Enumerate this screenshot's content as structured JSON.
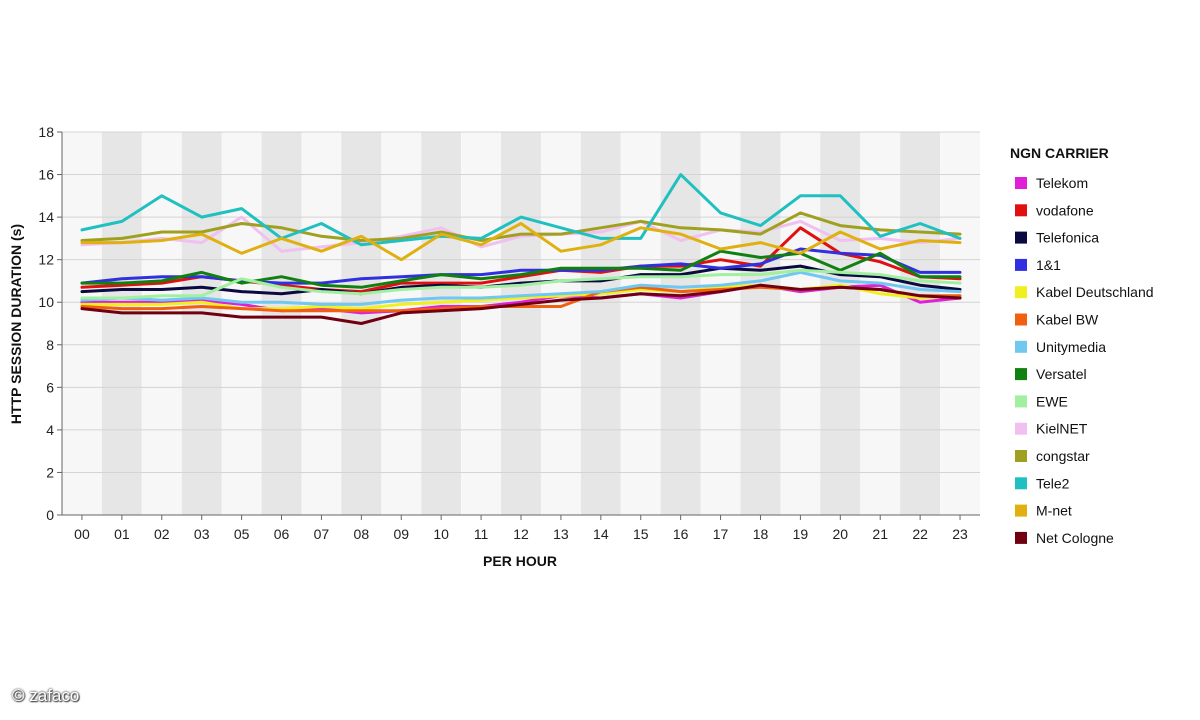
{
  "watermark": "© zafaco",
  "chart_data": {
    "type": "line",
    "title": "",
    "xlabel": "PER HOUR",
    "ylabel": "HTTP SESSION DURATION (s)",
    "ylim": [
      0,
      18
    ],
    "yticks": [
      0,
      2,
      4,
      6,
      8,
      10,
      12,
      14,
      16,
      18
    ],
    "grid": true,
    "legend_title": "NGN CARRIER",
    "legend_position": "right",
    "categories": [
      "00",
      "01",
      "02",
      "03",
      "05",
      "06",
      "07",
      "08",
      "09",
      "10",
      "11",
      "12",
      "13",
      "14",
      "15",
      "16",
      "17",
      "18",
      "19",
      "20",
      "21",
      "22",
      "23"
    ],
    "series": [
      {
        "name": "Telekom",
        "color": "#e020d8",
        "values": [
          10.0,
          10.0,
          10.0,
          10.1,
          9.9,
          9.6,
          9.7,
          9.5,
          9.6,
          9.8,
          9.8,
          10.0,
          10.3,
          10.2,
          10.4,
          10.2,
          10.5,
          10.8,
          10.5,
          10.7,
          10.8,
          10.0,
          10.2
        ]
      },
      {
        "name": "vodafone",
        "color": "#e01010",
        "values": [
          10.7,
          10.8,
          10.9,
          11.2,
          11.0,
          10.8,
          10.6,
          10.5,
          10.9,
          10.9,
          10.9,
          11.2,
          11.5,
          11.4,
          11.7,
          11.7,
          12.0,
          11.7,
          13.5,
          12.3,
          11.9,
          11.2,
          11.1
        ]
      },
      {
        "name": "Telefonica",
        "color": "#0a0a40",
        "values": [
          10.5,
          10.6,
          10.6,
          10.7,
          10.5,
          10.4,
          10.6,
          10.4,
          10.7,
          10.8,
          10.7,
          10.9,
          11.0,
          11.0,
          11.3,
          11.3,
          11.6,
          11.5,
          11.7,
          11.3,
          11.2,
          10.8,
          10.6
        ]
      },
      {
        "name": "1&1",
        "color": "#3030e0",
        "values": [
          10.9,
          11.1,
          11.2,
          11.2,
          11.0,
          10.9,
          10.9,
          11.1,
          11.2,
          11.3,
          11.3,
          11.5,
          11.5,
          11.5,
          11.7,
          11.8,
          11.6,
          11.8,
          12.5,
          12.3,
          12.2,
          11.4,
          11.4
        ]
      },
      {
        "name": "Kabel Deutschland",
        "color": "#f0f020",
        "values": [
          9.9,
          9.9,
          9.9,
          10.0,
          9.7,
          9.7,
          9.8,
          9.7,
          9.9,
          10.0,
          10.1,
          10.2,
          10.3,
          10.4,
          10.6,
          10.5,
          10.7,
          10.8,
          10.6,
          10.8,
          10.4,
          10.2,
          10.3
        ]
      },
      {
        "name": "Kabel BW",
        "color": "#f06010",
        "values": [
          9.8,
          9.7,
          9.7,
          9.8,
          9.7,
          9.6,
          9.6,
          9.6,
          9.6,
          9.7,
          9.8,
          9.8,
          9.8,
          10.5,
          10.7,
          10.5,
          10.6,
          10.7,
          10.6,
          10.7,
          10.6,
          10.3,
          10.3
        ]
      },
      {
        "name": "Unitymedia",
        "color": "#70c8f0",
        "values": [
          10.1,
          10.2,
          10.1,
          10.2,
          10.0,
          10.0,
          9.9,
          9.9,
          10.1,
          10.2,
          10.2,
          10.3,
          10.4,
          10.5,
          10.8,
          10.7,
          10.8,
          11.0,
          11.4,
          11.0,
          10.9,
          10.6,
          10.5
        ]
      },
      {
        "name": "Versatel",
        "color": "#108010",
        "values": [
          10.9,
          10.9,
          11.0,
          11.4,
          10.9,
          11.2,
          10.8,
          10.7,
          11.0,
          11.3,
          11.1,
          11.3,
          11.6,
          11.6,
          11.6,
          11.5,
          12.4,
          12.1,
          12.3,
          11.5,
          12.3,
          11.2,
          11.2
        ]
      },
      {
        "name": "EWE",
        "color": "#a0f0a0",
        "values": [
          10.2,
          10.2,
          10.3,
          10.3,
          11.1,
          10.7,
          10.5,
          10.4,
          10.6,
          10.7,
          10.7,
          10.8,
          11.0,
          11.1,
          11.2,
          11.2,
          11.3,
          11.3,
          11.5,
          11.4,
          11.3,
          11.0,
          10.9
        ]
      },
      {
        "name": "KielNET",
        "color": "#f0c0f0",
        "values": [
          12.7,
          12.8,
          13.0,
          12.8,
          14.0,
          12.4,
          12.6,
          12.8,
          13.1,
          13.5,
          12.6,
          13.1,
          13.2,
          13.3,
          13.8,
          12.9,
          13.4,
          13.3,
          13.8,
          12.9,
          13.0,
          12.8,
          13.0
        ]
      },
      {
        "name": "congstar",
        "color": "#a0a020",
        "values": [
          12.9,
          13.0,
          13.3,
          13.3,
          13.7,
          13.5,
          13.1,
          12.9,
          13.0,
          13.3,
          12.9,
          13.2,
          13.2,
          13.5,
          13.8,
          13.5,
          13.4,
          13.2,
          14.2,
          13.6,
          13.4,
          13.3,
          13.2
        ]
      },
      {
        "name": "Tele2",
        "color": "#20c0c0",
        "values": [
          13.4,
          13.8,
          15.0,
          14.0,
          14.4,
          13.0,
          13.7,
          12.7,
          12.9,
          13.1,
          13.0,
          14.0,
          13.5,
          13.0,
          13.0,
          16.0,
          14.2,
          13.6,
          15.0,
          15.0,
          13.1,
          13.7,
          13.0
        ]
      },
      {
        "name": "M-net",
        "color": "#e0b010",
        "values": [
          12.8,
          12.8,
          12.9,
          13.2,
          12.3,
          13.0,
          12.4,
          13.1,
          12.0,
          13.2,
          12.7,
          13.7,
          12.4,
          12.7,
          13.5,
          13.2,
          12.5,
          12.8,
          12.3,
          13.3,
          12.5,
          12.9,
          12.8
        ]
      },
      {
        "name": "Net Cologne",
        "color": "#700010",
        "values": [
          9.7,
          9.5,
          9.5,
          9.5,
          9.3,
          9.3,
          9.3,
          9.0,
          9.5,
          9.6,
          9.7,
          9.9,
          10.1,
          10.2,
          10.4,
          10.3,
          10.5,
          10.8,
          10.6,
          10.7,
          10.6,
          10.3,
          10.2
        ]
      }
    ]
  }
}
